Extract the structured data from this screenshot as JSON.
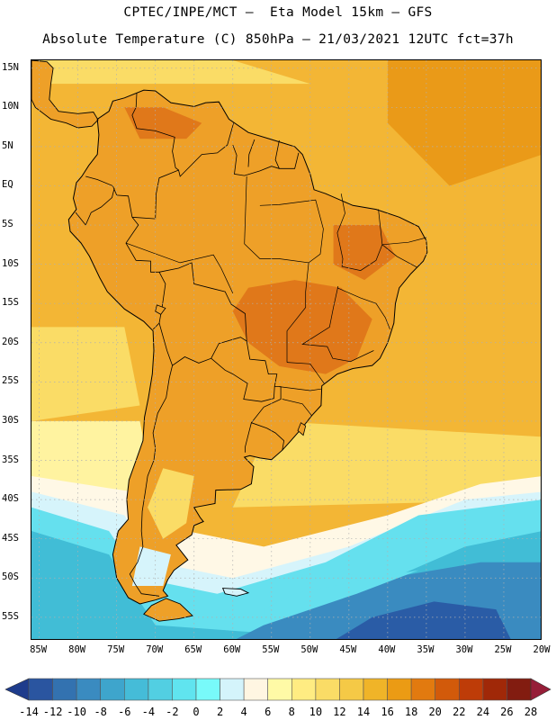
{
  "title_line1": "CPTEC/INPE/MCT –  Eta Model 15km – GFS",
  "title_line2": "Absolute Temperature (C) 850hPa – 21/03/2021 12UTC fct=37h",
  "lat_labels": [
    "15N",
    "10N",
    "5N",
    "EQ",
    "5S",
    "10S",
    "15S",
    "20S",
    "25S",
    "30S",
    "35S",
    "40S",
    "45S",
    "50S",
    "55S"
  ],
  "lon_labels": [
    "85W",
    "80W",
    "75W",
    "70W",
    "65W",
    "60W",
    "55W",
    "50W",
    "45W",
    "40W",
    "35W",
    "30W",
    "25W",
    "20W"
  ],
  "colorbar": {
    "labels": [
      "-14",
      "-12",
      "-10",
      "-8",
      "-6",
      "-4",
      "-2",
      "0",
      "2",
      "4",
      "6",
      "8",
      "10",
      "12",
      "14",
      "16",
      "18",
      "20",
      "22",
      "24",
      "26",
      "28"
    ],
    "colors": [
      "#1e3c8c",
      "#2a55a0",
      "#3372b0",
      "#3a8bc0",
      "#3ea5cc",
      "#45bcd8",
      "#52cfe2",
      "#60e4ef",
      "#78fafa",
      "#d4f4fb",
      "#fff6e2",
      "#fffaa6",
      "#ffec82",
      "#fadc66",
      "#f5c946",
      "#f0b428",
      "#eb9b14",
      "#e27a0f",
      "#d25a0a",
      "#be3c08",
      "#a02808",
      "#821c10",
      "#961e38"
    ]
  },
  "map": {
    "domain": {
      "lon_min": -86,
      "lon_max": -20,
      "lat_min": -58,
      "lat_max": 16
    },
    "colors": {
      "ocean_warm": "#f3b635",
      "ocean_hot": "#ea9a18",
      "land_warm": "#eea028",
      "land_hot": "#e0781a",
      "mild": "#fadc66",
      "cool": "#fff3a0",
      "pale": "#fff8e6",
      "ice": "#d6f4fb",
      "cyan": "#65e0ee",
      "teal": "#41bdd6",
      "blue": "#3a8bc0",
      "deep_blue": "#2a5ca6",
      "coast": "#000000",
      "grid": "#b0b0b0"
    }
  }
}
